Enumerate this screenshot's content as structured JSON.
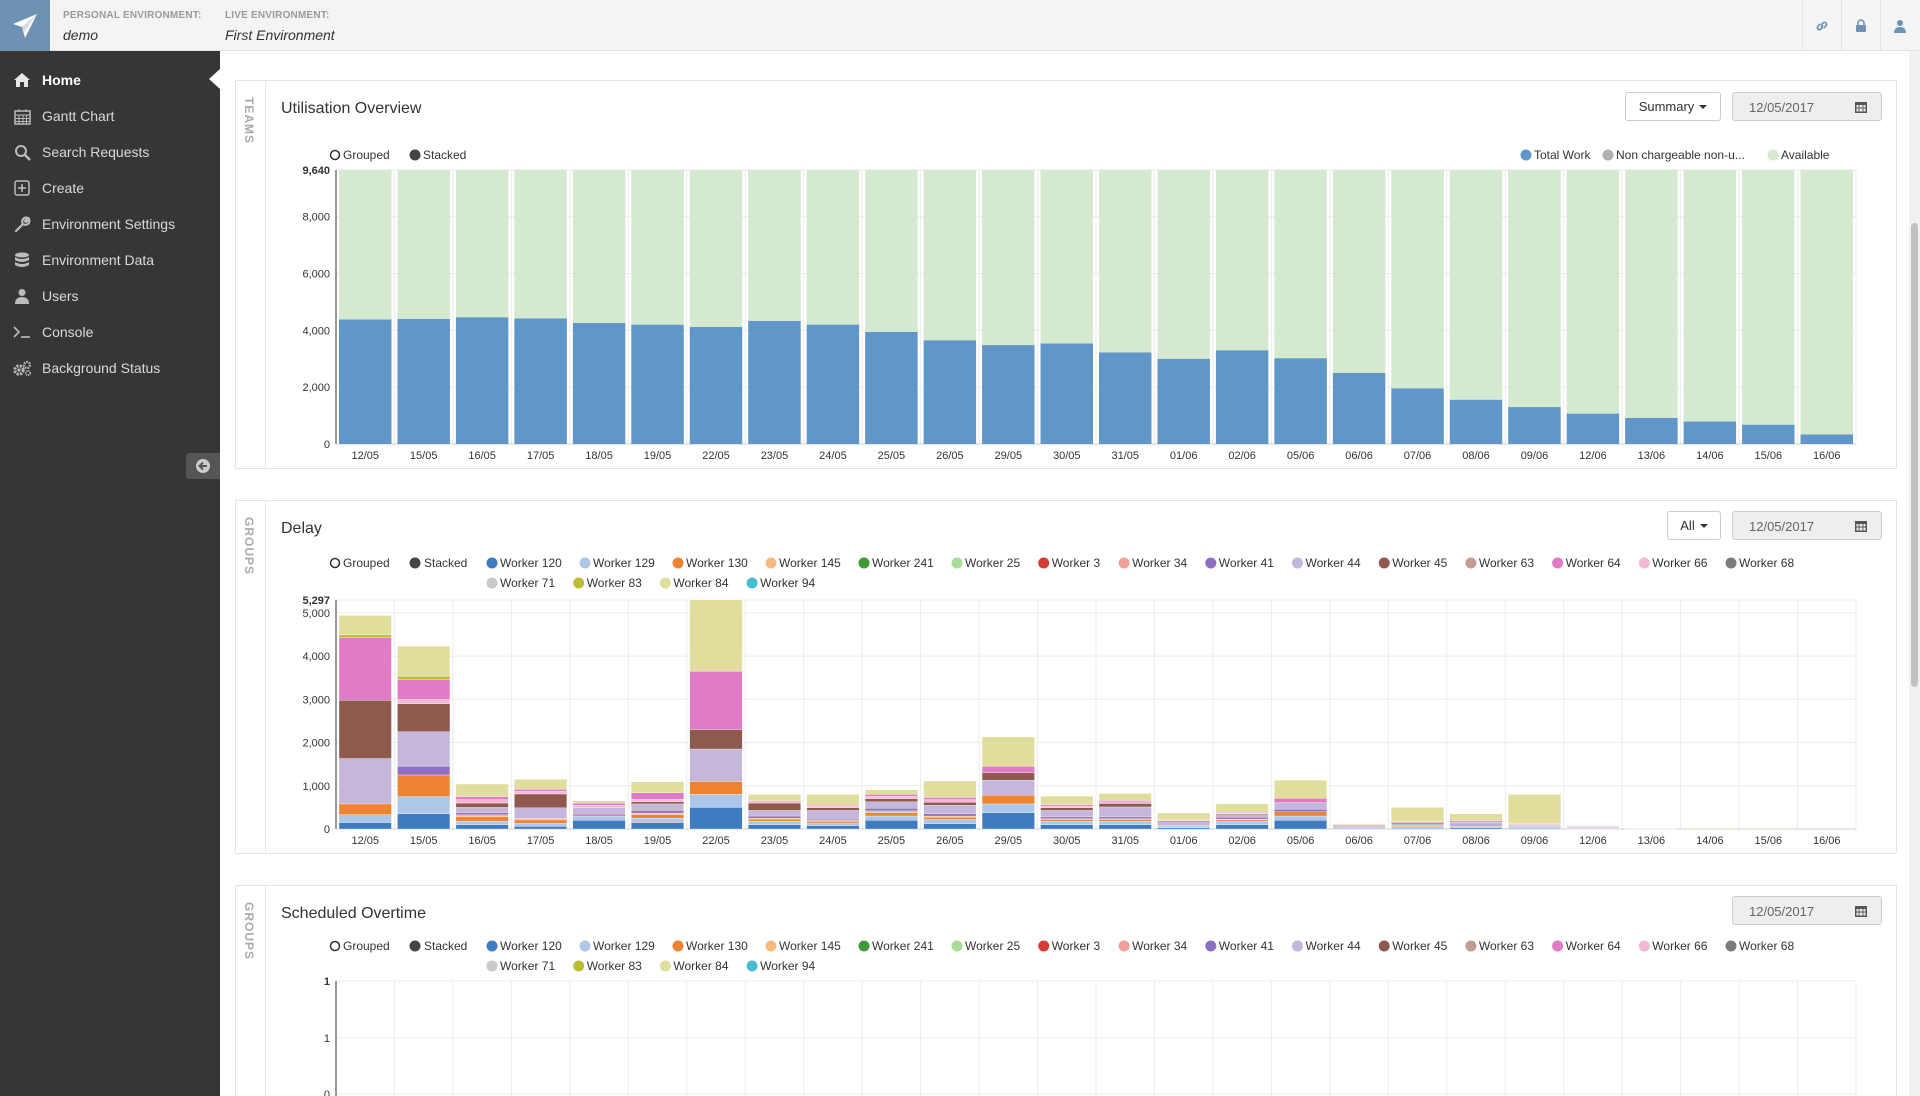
{
  "header": {
    "personal_env_label": "PERSONAL ENVIRONMENT:",
    "personal_env_value": "demo",
    "live_env_label": "LIVE ENVIRONMENT:",
    "live_env_value": "First Environment",
    "icons": [
      "link-icon",
      "lock-icon",
      "user-icon"
    ]
  },
  "sidebar": {
    "items": [
      {
        "label": "Home",
        "icon": "home-icon"
      },
      {
        "label": "Gantt Chart",
        "icon": "calendar-icon"
      },
      {
        "label": "Search Requests",
        "icon": "search-icon"
      },
      {
        "label": "Create",
        "icon": "plus-square-icon"
      },
      {
        "label": "Environment Settings",
        "icon": "wrench-icon"
      },
      {
        "label": "Environment Data",
        "icon": "database-icon"
      },
      {
        "label": "Users",
        "icon": "user-icon"
      },
      {
        "label": "Console",
        "icon": "terminal-icon"
      },
      {
        "label": "Background Status",
        "icon": "gears-icon"
      }
    ]
  },
  "colors": {
    "total_work": "#6096c8",
    "available": "#d5e8d0",
    "non_chargeable": "#b0b0b0"
  },
  "panels": {
    "utilisation": {
      "side_label": "TEAMS",
      "title": "Utilisation Overview",
      "dropdown": "Summary",
      "date": "12/05/2017"
    },
    "delay": {
      "side_label": "GROUPS",
      "title": "Delay",
      "dropdown": "All",
      "date": "12/05/2017"
    },
    "overtime": {
      "side_label": "GROUPS",
      "title": "Scheduled Overtime",
      "date": "12/05/2017"
    }
  },
  "mode_toggle": {
    "grouped": "Grouped",
    "stacked": "Stacked"
  },
  "chart_data": [
    {
      "type": "bar",
      "title": "Utilisation Overview",
      "stacked": true,
      "categories": [
        "12/05",
        "15/05",
        "16/05",
        "17/05",
        "18/05",
        "19/05",
        "22/05",
        "23/05",
        "24/05",
        "25/05",
        "26/05",
        "29/05",
        "30/05",
        "31/05",
        "01/06",
        "02/06",
        "05/06",
        "06/06",
        "07/06",
        "08/06",
        "09/06",
        "12/06",
        "13/06",
        "14/06",
        "15/06",
        "16/06"
      ],
      "ylim": [
        0,
        9640
      ],
      "yticks": [
        "0",
        "2,000",
        "4,000",
        "6,000",
        "8,000",
        "9,640"
      ],
      "legend": [
        "Total Work",
        "Non chargeable non-u...",
        "Available"
      ],
      "series": [
        {
          "name": "Total Work",
          "values": [
            4380,
            4400,
            4460,
            4420,
            4260,
            4200,
            4120,
            4330,
            4200,
            3940,
            3650,
            3480,
            3540,
            3220,
            3000,
            3300,
            3020,
            2500,
            1960,
            1560,
            1300,
            1070,
            920,
            790,
            680,
            340
          ]
        },
        {
          "name": "Available",
          "values": [
            5260,
            5240,
            5180,
            5220,
            5380,
            5440,
            5520,
            5310,
            5440,
            5700,
            5990,
            6160,
            6100,
            6420,
            6640,
            6340,
            6620,
            7140,
            7680,
            8080,
            8340,
            8570,
            8720,
            8850,
            8960,
            9300
          ]
        }
      ]
    },
    {
      "type": "bar",
      "title": "Delay",
      "stacked": true,
      "categories": [
        "12/05",
        "15/05",
        "16/05",
        "17/05",
        "18/05",
        "19/05",
        "22/05",
        "23/05",
        "24/05",
        "25/05",
        "26/05",
        "29/05",
        "30/05",
        "31/05",
        "01/06",
        "02/06",
        "05/06",
        "06/06",
        "07/06",
        "08/06",
        "09/06",
        "12/06",
        "13/06",
        "14/06",
        "15/06",
        "16/06"
      ],
      "ylim": [
        0,
        5297
      ],
      "yticks": [
        "0",
        "1,000",
        "2,000",
        "3,000",
        "4,000",
        "5,000",
        "5,297"
      ],
      "legend": [
        "Worker 120",
        "Worker 129",
        "Worker 130",
        "Worker 145",
        "Worker 241",
        "Worker 25",
        "Worker 3",
        "Worker 34",
        "Worker 41",
        "Worker 44",
        "Worker 45",
        "Worker 63",
        "Worker 64",
        "Worker 66",
        "Worker 68",
        "Worker 71",
        "Worker 83",
        "Worker 84",
        "Worker 94"
      ],
      "series": [
        {
          "name": "Worker 120",
          "values": [
            150,
            350,
            100,
            60,
            200,
            150,
            500,
            100,
            80,
            200,
            120,
            380,
            100,
            100,
            30,
            100,
            200,
            0,
            20,
            30,
            20,
            0,
            0,
            0,
            0,
            0
          ]
        },
        {
          "name": "Worker 129",
          "values": [
            180,
            400,
            80,
            70,
            100,
            100,
            300,
            80,
            60,
            100,
            100,
            200,
            80,
            80,
            40,
            80,
            100,
            30,
            30,
            30,
            20,
            20,
            0,
            0,
            0,
            0
          ]
        },
        {
          "name": "Worker 130",
          "values": [
            250,
            500,
            100,
            80,
            30,
            80,
            300,
            50,
            40,
            80,
            50,
            200,
            40,
            40,
            20,
            30,
            100,
            0,
            20,
            20,
            10,
            0,
            0,
            0,
            0,
            0
          ]
        },
        {
          "name": "Worker 145",
          "values": [
            0,
            0,
            50,
            30,
            0,
            40,
            0,
            20,
            20,
            40,
            30,
            0,
            20,
            20,
            0,
            20,
            0,
            0,
            0,
            0,
            0,
            0,
            0,
            0,
            0,
            0
          ]
        },
        {
          "name": "Worker 41",
          "values": [
            0,
            200,
            50,
            0,
            30,
            60,
            0,
            50,
            30,
            60,
            50,
            0,
            40,
            40,
            0,
            40,
            60,
            0,
            0,
            30,
            0,
            0,
            0,
            0,
            0,
            0
          ]
        },
        {
          "name": "Worker 44",
          "values": [
            1050,
            800,
            120,
            250,
            130,
            150,
            750,
            130,
            200,
            150,
            200,
            350,
            150,
            230,
            80,
            60,
            150,
            30,
            50,
            50,
            40,
            20,
            10,
            0,
            0,
            0
          ]
        },
        {
          "name": "Worker 45",
          "values": [
            1350,
            650,
            100,
            320,
            0,
            50,
            450,
            170,
            60,
            70,
            70,
            170,
            60,
            80,
            20,
            20,
            0,
            20,
            30,
            20,
            10,
            0,
            0,
            0,
            0,
            0
          ]
        },
        {
          "name": "Worker 66",
          "values": [
            0,
            100,
            80,
            60,
            60,
            60,
            0,
            50,
            40,
            60,
            60,
            0,
            40,
            40,
            20,
            20,
            0,
            20,
            20,
            20,
            20,
            20,
            0,
            0,
            0,
            0
          ]
        },
        {
          "name": "Worker 64",
          "values": [
            1450,
            450,
            70,
            50,
            50,
            150,
            1350,
            0,
            20,
            40,
            50,
            150,
            30,
            30,
            0,
            20,
            100,
            0,
            0,
            0,
            0,
            0,
            0,
            0,
            0,
            0
          ]
        },
        {
          "name": "Worker 83",
          "values": [
            60,
            80,
            0,
            0,
            0,
            0,
            0,
            0,
            0,
            0,
            0,
            0,
            0,
            0,
            0,
            0,
            0,
            0,
            0,
            0,
            0,
            0,
            0,
            0,
            0,
            0
          ]
        },
        {
          "name": "Worker 84",
          "values": [
            450,
            700,
            290,
            230,
            50,
            250,
            1650,
            150,
            250,
            110,
            380,
            680,
            200,
            160,
            160,
            190,
            420,
            20,
            330,
            150,
            680,
            10,
            10,
            20,
            20,
            0
          ]
        }
      ]
    },
    {
      "type": "bar",
      "title": "Scheduled Overtime",
      "stacked": true,
      "ylim": [
        0,
        1
      ],
      "yticks": [
        "0",
        "1",
        "1"
      ],
      "legend": [
        "Worker 120",
        "Worker 129",
        "Worker 130",
        "Worker 145",
        "Worker 241",
        "Worker 25",
        "Worker 3",
        "Worker 34",
        "Worker 41",
        "Worker 44",
        "Worker 45",
        "Worker 63",
        "Worker 64",
        "Worker 66",
        "Worker 68",
        "Worker 71",
        "Worker 83",
        "Worker 84",
        "Worker 94"
      ],
      "series": []
    }
  ],
  "worker_colors": {
    "Worker 120": "#3f7bc1",
    "Worker 129": "#aec7e8",
    "Worker 130": "#ee8432",
    "Worker 145": "#f6bb7c",
    "Worker 241": "#3f9a3a",
    "Worker 25": "#a8dd96",
    "Worker 3": "#d63a34",
    "Worker 34": "#f39f9b",
    "Worker 41": "#8e6fc1",
    "Worker 44": "#c5b6dc",
    "Worker 45": "#8f5a4d",
    "Worker 63": "#c49b92",
    "Worker 64": "#e07bc6",
    "Worker 66": "#f3b8d6",
    "Worker 68": "#7c7c7c",
    "Worker 71": "#c9c9c9",
    "Worker 83": "#bdbd33",
    "Worker 84": "#e0de9c",
    "Worker 94": "#4bbdd3"
  }
}
